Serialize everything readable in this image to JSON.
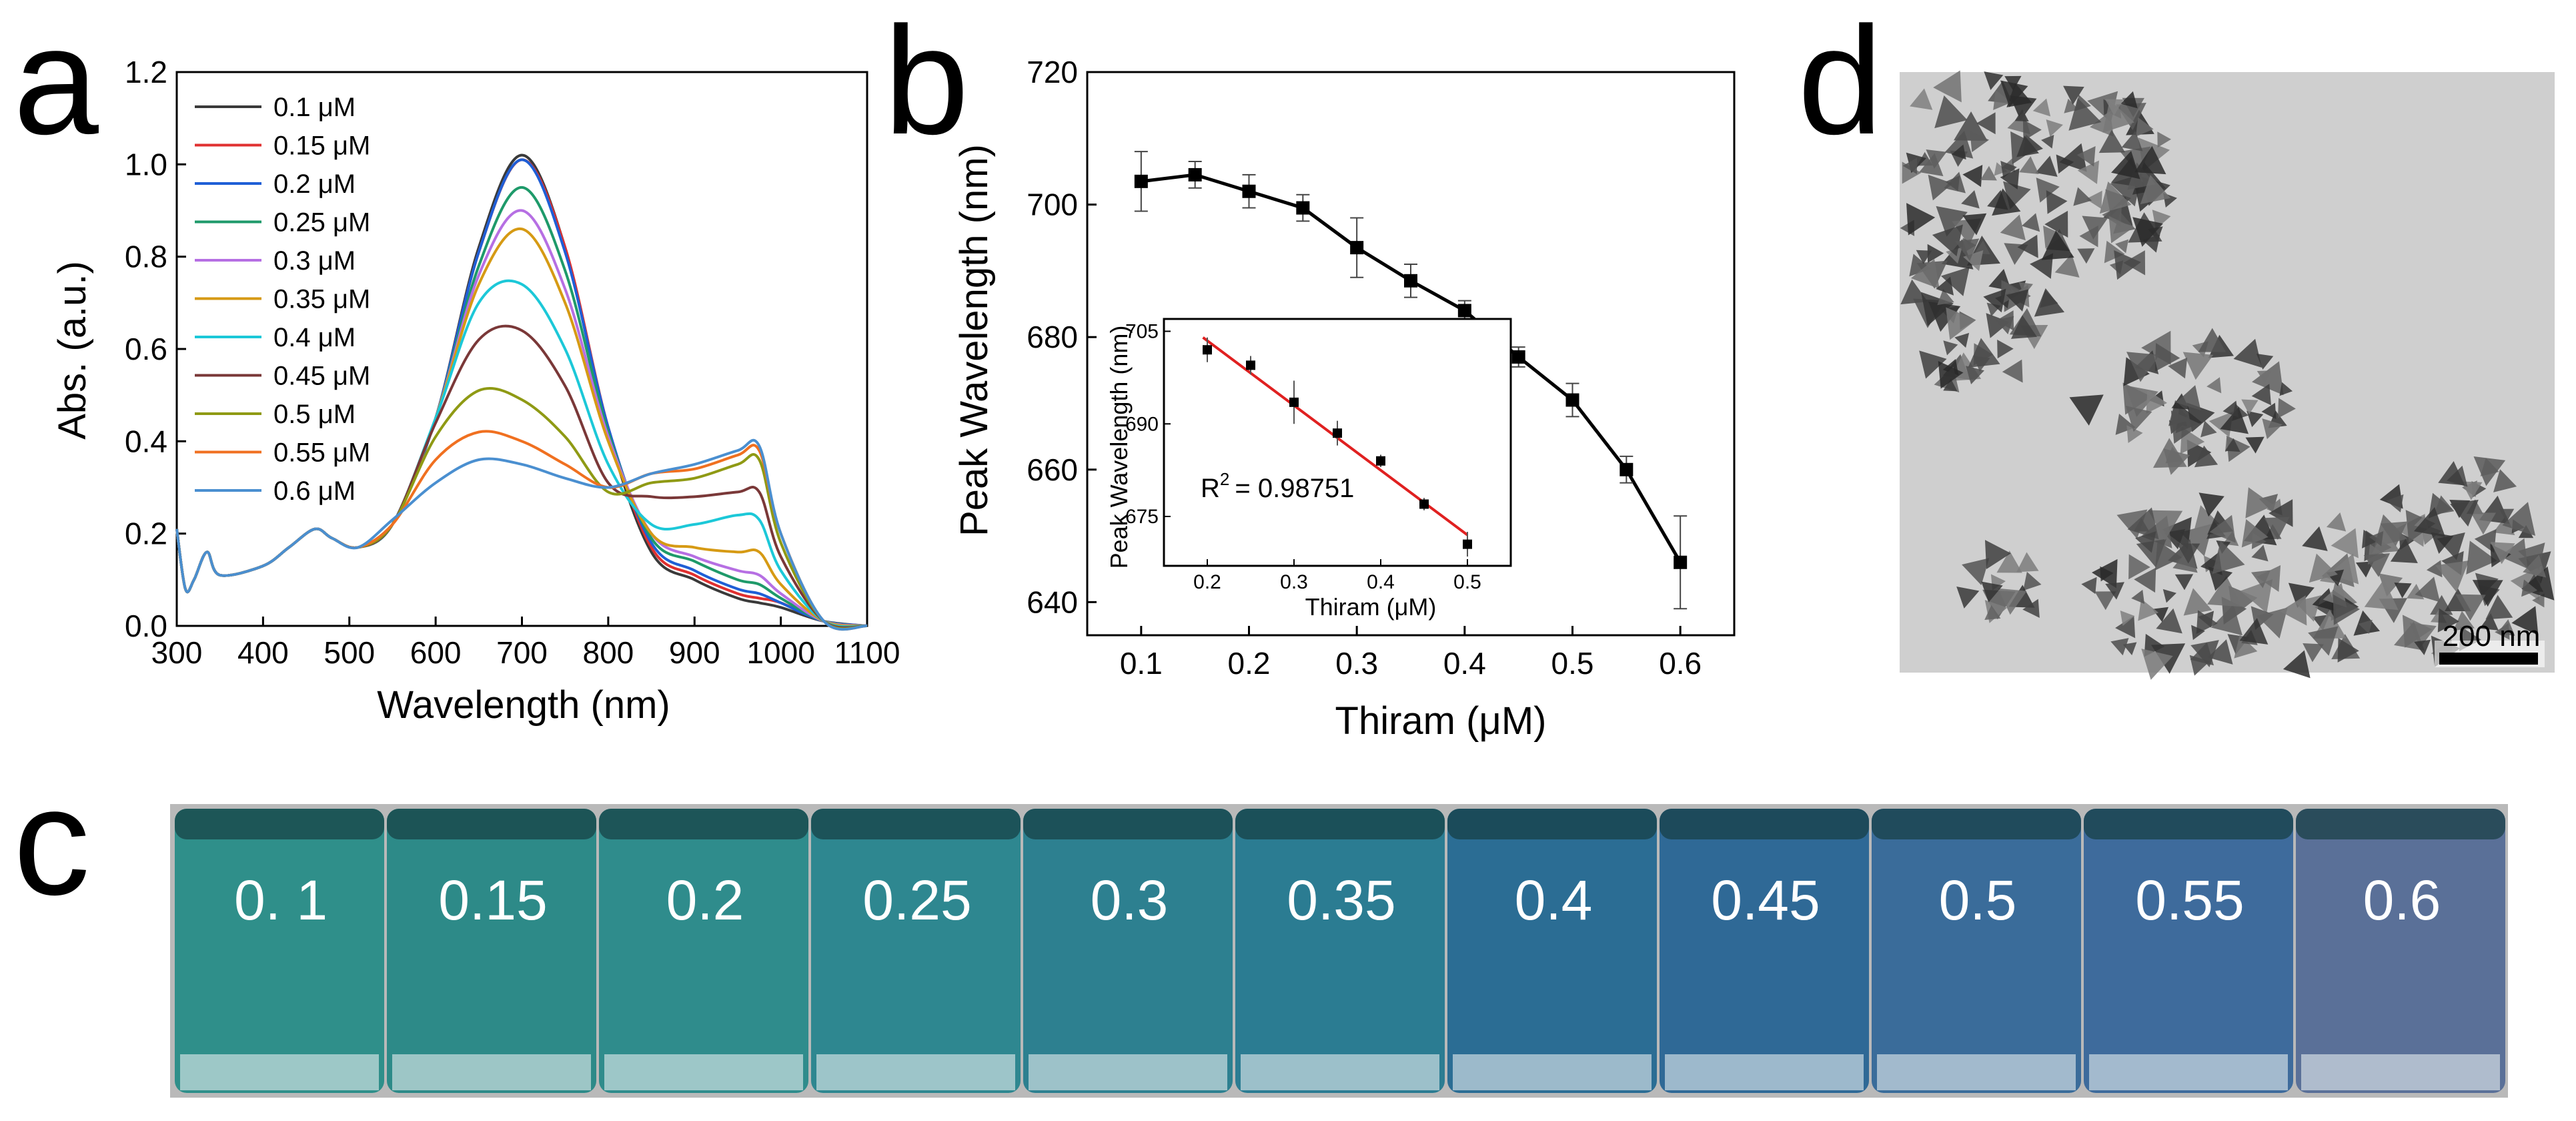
{
  "panels": {
    "a": "a",
    "b": "b",
    "c": "c",
    "d": "d"
  },
  "chart_data": [
    {
      "id": "a",
      "type": "line",
      "title": "",
      "xlabel": "Wavelength (nm)",
      "ylabel": "Abs. (a.u.)",
      "xlim": [
        300,
        1100
      ],
      "ylim": [
        0.0,
        1.2
      ],
      "xticks": [
        "300",
        "400",
        "500",
        "600",
        "700",
        "800",
        "900",
        "1000",
        "1100"
      ],
      "yticks": [
        "0.0",
        "0.2",
        "0.4",
        "0.6",
        "0.8",
        "1.0",
        "1.2"
      ],
      "legend_position": "top-left",
      "x": [
        300,
        310,
        320,
        335,
        350,
        400,
        430,
        460,
        480,
        510,
        550,
        600,
        650,
        700,
        750,
        800,
        850,
        900,
        950,
        975,
        1000,
        1050,
        1100
      ],
      "series": [
        {
          "name": "0.1 μM",
          "color": "#3a3a3a",
          "values": [
            0.21,
            0.08,
            0.1,
            0.16,
            0.11,
            0.13,
            0.17,
            0.21,
            0.19,
            0.17,
            0.22,
            0.45,
            0.82,
            1.02,
            0.82,
            0.42,
            0.16,
            0.1,
            0.06,
            0.05,
            0.04,
            0.01,
            0.0
          ]
        },
        {
          "name": "0.15 μM",
          "color": "#e03030",
          "values": [
            0.21,
            0.08,
            0.1,
            0.16,
            0.11,
            0.13,
            0.17,
            0.21,
            0.19,
            0.17,
            0.22,
            0.45,
            0.81,
            1.01,
            0.82,
            0.43,
            0.17,
            0.11,
            0.07,
            0.06,
            0.05,
            0.01,
            0.0
          ]
        },
        {
          "name": "0.2 μM",
          "color": "#1f5fd6",
          "values": [
            0.21,
            0.08,
            0.1,
            0.16,
            0.11,
            0.13,
            0.17,
            0.21,
            0.19,
            0.17,
            0.22,
            0.45,
            0.81,
            1.01,
            0.81,
            0.43,
            0.18,
            0.12,
            0.08,
            0.07,
            0.05,
            0.01,
            0.0
          ]
        },
        {
          "name": "0.25 μM",
          "color": "#1e9a6a",
          "values": [
            0.21,
            0.08,
            0.1,
            0.16,
            0.11,
            0.13,
            0.17,
            0.21,
            0.19,
            0.17,
            0.22,
            0.45,
            0.78,
            0.95,
            0.77,
            0.42,
            0.19,
            0.14,
            0.1,
            0.09,
            0.06,
            0.01,
            0.0
          ]
        },
        {
          "name": "0.3 μM",
          "color": "#b66fe3",
          "values": [
            0.21,
            0.08,
            0.1,
            0.16,
            0.11,
            0.13,
            0.17,
            0.21,
            0.19,
            0.17,
            0.22,
            0.45,
            0.76,
            0.9,
            0.73,
            0.41,
            0.2,
            0.15,
            0.12,
            0.11,
            0.07,
            0.01,
            0.0
          ]
        },
        {
          "name": "0.35 μM",
          "color": "#d69a14",
          "values": [
            0.21,
            0.08,
            0.1,
            0.16,
            0.11,
            0.13,
            0.17,
            0.21,
            0.19,
            0.17,
            0.22,
            0.45,
            0.74,
            0.86,
            0.7,
            0.4,
            0.2,
            0.17,
            0.16,
            0.16,
            0.09,
            0.01,
            0.0
          ]
        },
        {
          "name": "0.4 μM",
          "color": "#1cc8d8",
          "values": [
            0.21,
            0.08,
            0.1,
            0.16,
            0.11,
            0.13,
            0.17,
            0.21,
            0.19,
            0.17,
            0.22,
            0.45,
            0.7,
            0.74,
            0.6,
            0.35,
            0.22,
            0.22,
            0.24,
            0.23,
            0.12,
            0.01,
            0.0
          ]
        },
        {
          "name": "0.45 μM",
          "color": "#7a3838",
          "values": [
            0.21,
            0.08,
            0.1,
            0.16,
            0.11,
            0.13,
            0.17,
            0.21,
            0.19,
            0.17,
            0.22,
            0.44,
            0.62,
            0.64,
            0.52,
            0.31,
            0.28,
            0.28,
            0.29,
            0.29,
            0.15,
            0.01,
            0.0
          ]
        },
        {
          "name": "0.5 μM",
          "color": "#8f9a14",
          "values": [
            0.21,
            0.08,
            0.1,
            0.16,
            0.11,
            0.13,
            0.17,
            0.21,
            0.19,
            0.17,
            0.22,
            0.41,
            0.51,
            0.49,
            0.41,
            0.29,
            0.31,
            0.32,
            0.35,
            0.36,
            0.18,
            0.01,
            0.0
          ]
        },
        {
          "name": "0.55 μM",
          "color": "#f07020",
          "values": [
            0.21,
            0.08,
            0.1,
            0.16,
            0.11,
            0.13,
            0.17,
            0.21,
            0.19,
            0.17,
            0.22,
            0.36,
            0.42,
            0.4,
            0.35,
            0.3,
            0.33,
            0.34,
            0.37,
            0.38,
            0.2,
            0.01,
            0.0
          ]
        },
        {
          "name": "0.6 μM",
          "color": "#4a8fd0",
          "values": [
            0.21,
            0.08,
            0.1,
            0.16,
            0.11,
            0.13,
            0.17,
            0.21,
            0.19,
            0.17,
            0.23,
            0.31,
            0.36,
            0.35,
            0.32,
            0.3,
            0.33,
            0.35,
            0.38,
            0.39,
            0.2,
            0.01,
            0.0
          ]
        }
      ]
    },
    {
      "id": "b",
      "type": "line",
      "title": "",
      "xlabel": "Thiram (μM)",
      "ylabel": "Peak Wavelength (nm)",
      "xlim": [
        0.05,
        0.65
      ],
      "ylim": [
        635,
        720
      ],
      "xticks": [
        "0.1",
        "0.2",
        "0.3",
        "0.4",
        "0.5",
        "0.6"
      ],
      "yticks": [
        "640",
        "660",
        "680",
        "700",
        "720"
      ],
      "x": [
        0.1,
        0.15,
        0.2,
        0.25,
        0.3,
        0.35,
        0.4,
        0.45,
        0.5,
        0.55,
        0.6
      ],
      "values": [
        703.5,
        704.5,
        702.0,
        699.5,
        693.5,
        688.5,
        684.0,
        677.0,
        670.5,
        660.0,
        646.0
      ],
      "errors": [
        4.5,
        2.0,
        2.5,
        2.0,
        4.5,
        2.5,
        1.5,
        1.5,
        2.5,
        2.0,
        7.0
      ],
      "color": "#000000",
      "inset": {
        "type": "scatter",
        "xlabel": "Thiram (μM)",
        "ylabel": "Peak Wavelength (nm)",
        "xlim": [
          0.15,
          0.55
        ],
        "ylim": [
          667,
          707
        ],
        "xticks": [
          "0.2",
          "0.3",
          "0.4",
          "0.5"
        ],
        "yticks": [
          "675",
          "690",
          "705"
        ],
        "x": [
          0.2,
          0.25,
          0.3,
          0.35,
          0.4,
          0.45,
          0.5
        ],
        "values": [
          702.0,
          699.5,
          693.5,
          688.5,
          684.0,
          677.0,
          670.5
        ],
        "errors": [
          2.0,
          1.5,
          3.5,
          2.0,
          1.0,
          1.0,
          2.0
        ],
        "fit": {
          "x": [
            0.195,
            0.5
          ],
          "y": [
            704.0,
            672.0
          ],
          "color": "#e02020"
        },
        "annotation_prefix": "R",
        "annotation_sup": "2",
        "annotation_value": "= 0.98751"
      }
    }
  ],
  "vials": {
    "labels": [
      "0. 1",
      "0.15",
      "0.2",
      "0.25",
      "0.3",
      "0.35",
      "0.4",
      "0.45",
      "0.5",
      "0.55",
      "0.6"
    ],
    "colors": [
      "#2f8f8a",
      "#2d8a88",
      "#2f8c8c",
      "#2e8790",
      "#2d8090",
      "#2b7c92",
      "#2b6d94",
      "#2f6996",
      "#3a6c9a",
      "#3e6b9c",
      "#5a7098"
    ]
  },
  "tem": {
    "scale_label": "200 nm"
  }
}
